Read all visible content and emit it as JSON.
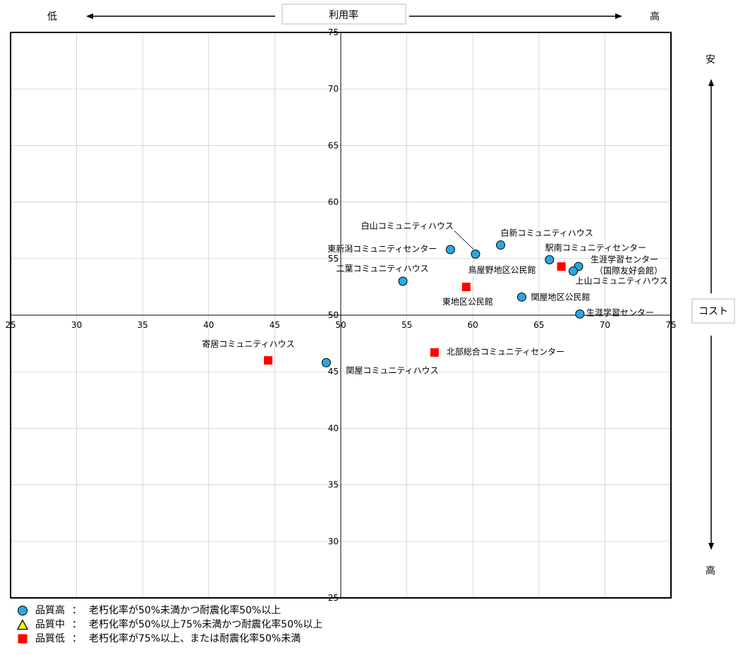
{
  "axis_labels": {
    "x_title": "利用率",
    "x_low": "低",
    "x_high": "高",
    "y_title": "コスト",
    "y_top": "安",
    "y_bottom": "高"
  },
  "colors": {
    "high_quality": "#29a8e0",
    "mid_quality": "#ffff00",
    "low_quality": "#ff0000",
    "grid": "#c8c8c8"
  },
  "legend": [
    {
      "symbol": "circle",
      "name": "品質高",
      "sep": "：",
      "desc": "老朽化率が50%未満かつ耐震化率50%以上"
    },
    {
      "symbol": "triangle",
      "name": "品質中",
      "sep": "：",
      "desc": "老朽化率が50%以上75%未満かつ耐震化率50%以上"
    },
    {
      "symbol": "square",
      "name": "品質低",
      "sep": "：",
      "desc": "老朽化率が75%以上、または耐震化率50%未満"
    }
  ],
  "chart_data": {
    "type": "scatter",
    "xlim": [
      25,
      75
    ],
    "ylim": [
      25,
      75
    ],
    "x_ticks": [
      25,
      30,
      35,
      40,
      45,
      50,
      55,
      60,
      65,
      70,
      75
    ],
    "y_ticks": [
      25,
      30,
      35,
      40,
      45,
      50,
      55,
      60,
      65,
      70,
      75
    ],
    "crosshair": {
      "x": 50,
      "y": 50
    },
    "grid": true,
    "points": [
      {
        "label": "白山コミュニティハウス",
        "x": 60.2,
        "y": 55.4,
        "quality": "high"
      },
      {
        "label": "白新コミュニティハウス",
        "x": 62.1,
        "y": 56.2,
        "quality": "high"
      },
      {
        "label": "東新潟コミュニティセンター",
        "x": 58.3,
        "y": 55.8,
        "quality": "high"
      },
      {
        "label": "駅南コミュニティセンター",
        "x": 65.8,
        "y": 54.9,
        "quality": "high"
      },
      {
        "label": "生涯学習センター\n（国際友好会館）",
        "x": 68.0,
        "y": 54.3,
        "quality": "high"
      },
      {
        "label": "上山コミュニティハウス",
        "x": 67.6,
        "y": 53.9,
        "quality": "high"
      },
      {
        "label": "鳥屋野地区公民館",
        "x": 66.7,
        "y": 54.3,
        "quality": "low"
      },
      {
        "label": "二葉コミュニティハウス",
        "x": 54.7,
        "y": 53.0,
        "quality": "high"
      },
      {
        "label": "東地区公民館",
        "x": 59.5,
        "y": 52.5,
        "quality": "low"
      },
      {
        "label": "関屋地区公民館",
        "x": 63.7,
        "y": 51.6,
        "quality": "high"
      },
      {
        "label": "生涯学習センター",
        "x": 68.1,
        "y": 50.1,
        "quality": "high"
      },
      {
        "label": "寄居コミュニティハウス",
        "x": 44.5,
        "y": 46.0,
        "quality": "low"
      },
      {
        "label": "関屋コミュニティハウス",
        "x": 48.9,
        "y": 45.8,
        "quality": "high"
      },
      {
        "label": "北部総合コミュニティセンター",
        "x": 57.1,
        "y": 46.7,
        "quality": "low"
      }
    ]
  }
}
